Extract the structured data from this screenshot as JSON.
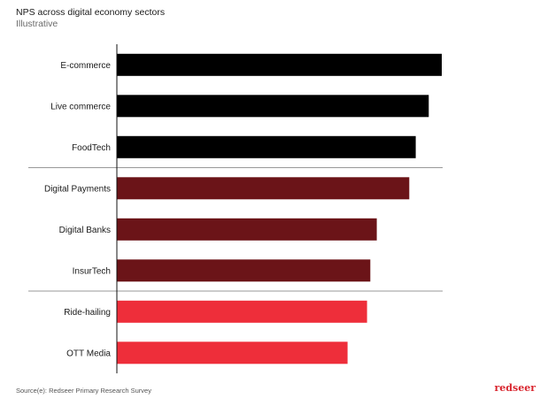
{
  "chart_data": {
    "type": "bar",
    "orientation": "horizontal",
    "title": "NPS across digital economy sectors",
    "subtitle": "Illustrative",
    "categories": [
      "E-commerce",
      "Live commerce",
      "FoodTech",
      "Digital Payments",
      "Digital Banks",
      "InsurTech",
      "Ride-hailing",
      "OTT Media"
    ],
    "values": [
      100,
      96,
      92,
      90,
      80,
      78,
      77,
      71
    ],
    "colors": [
      "#000000",
      "#000000",
      "#000000",
      "#6b1418",
      "#6b1418",
      "#6b1418",
      "#ee2e3a",
      "#ee2e3a"
    ],
    "groups": [
      [
        0,
        2
      ],
      [
        3,
        5
      ],
      [
        6,
        7
      ]
    ],
    "xlim": [
      0,
      100
    ],
    "grid": false,
    "legend": "none"
  },
  "footer": {
    "source": "Source(e): Redseer Primary Research Survey",
    "brand": "redseer"
  },
  "colors": {
    "separator": "#999999",
    "axis": "#111111"
  }
}
